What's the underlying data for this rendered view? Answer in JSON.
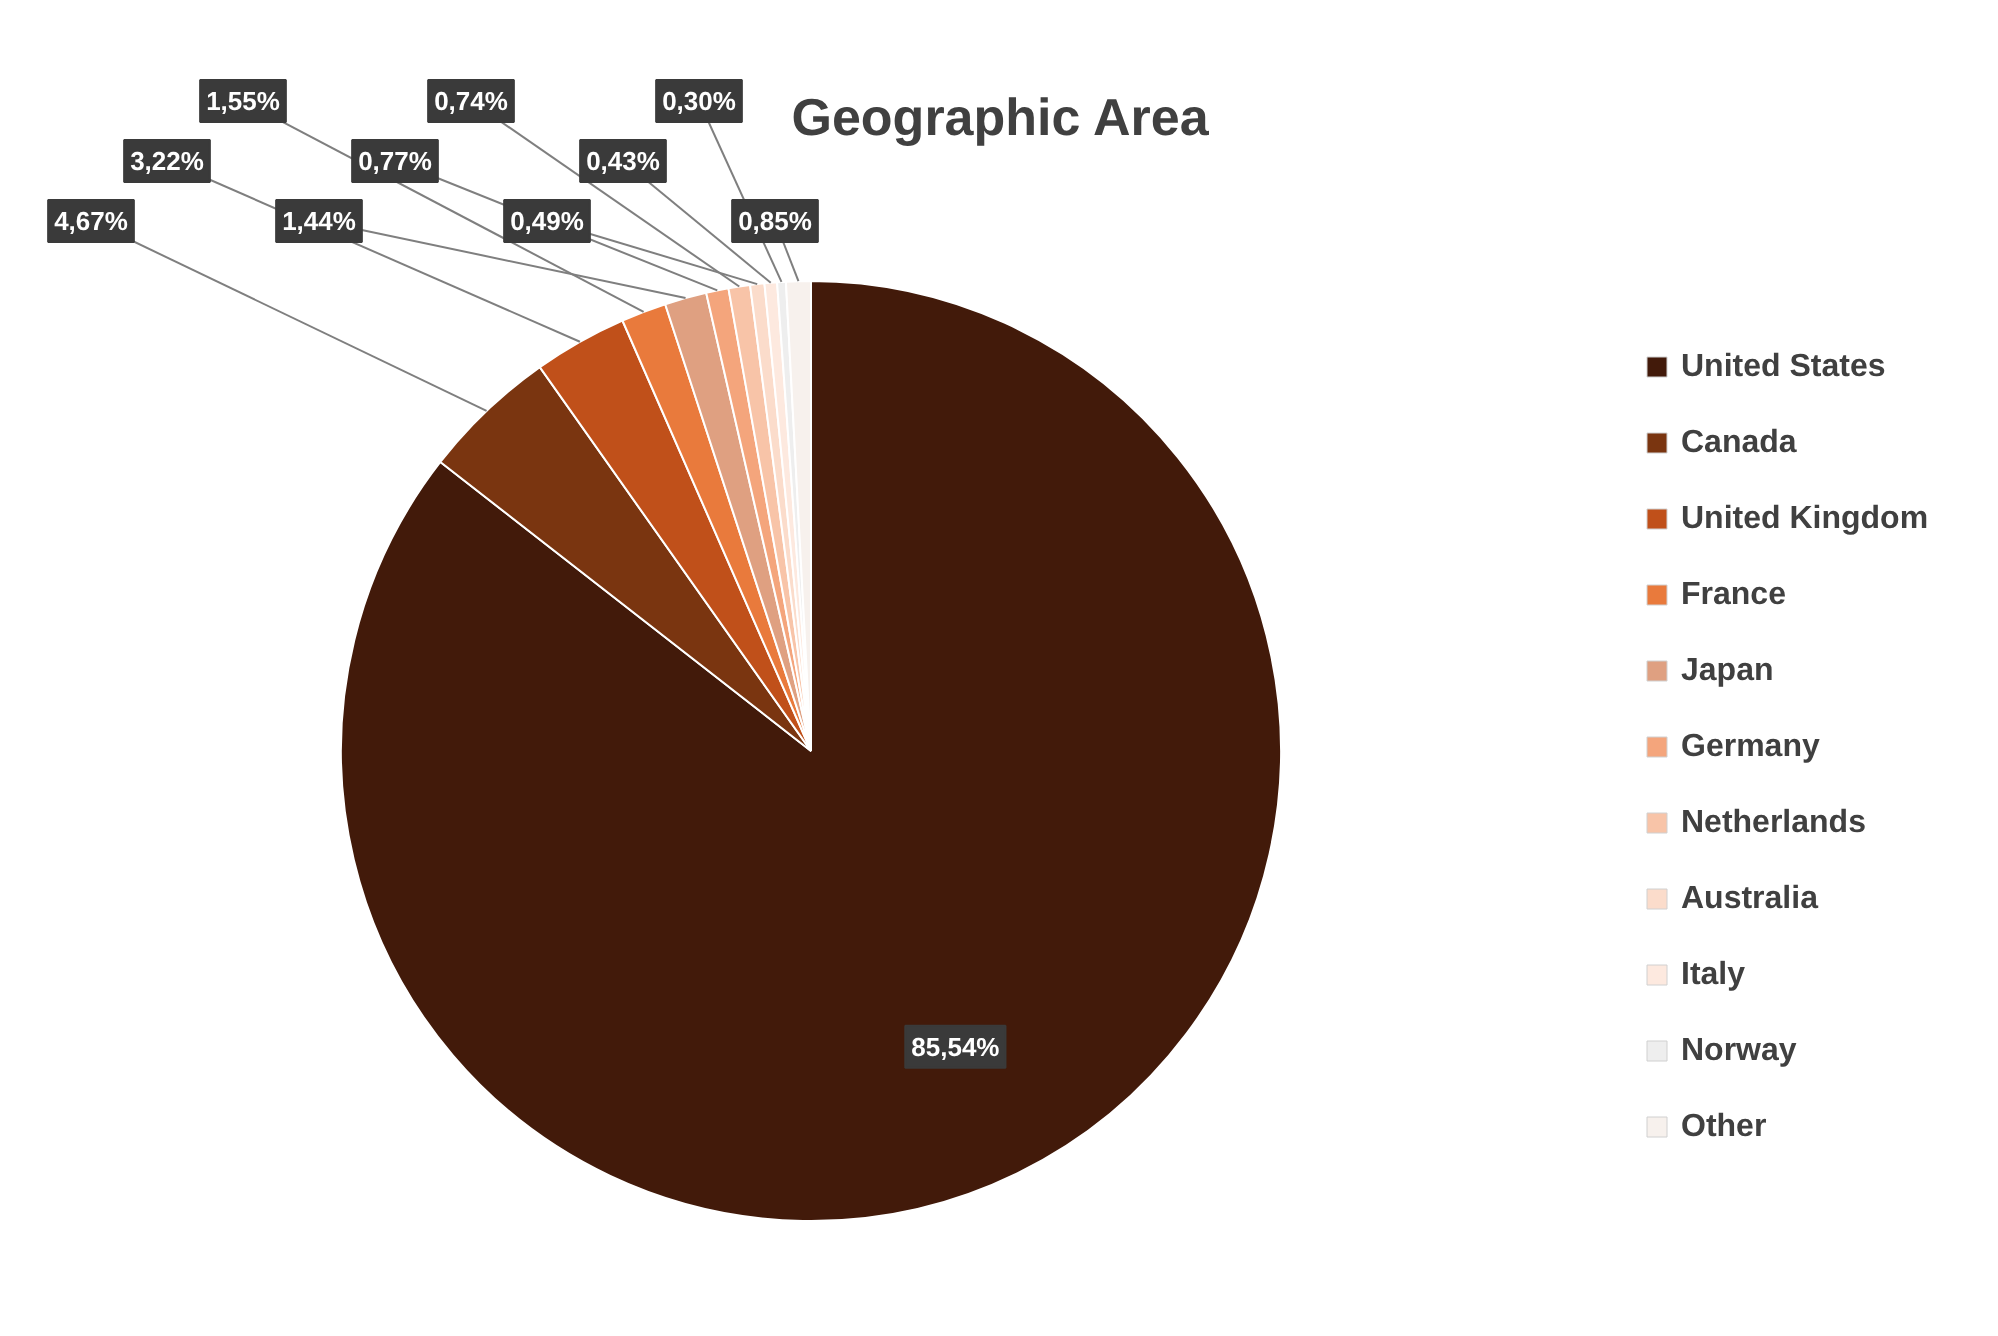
{
  "chart_data": {
    "type": "pie",
    "title": "Geographic Area",
    "categories": [
      "United States",
      "Canada",
      "United Kingdom",
      "France",
      "Japan",
      "Germany",
      "Netherlands",
      "Australia",
      "Italy",
      "Norway",
      "Other"
    ],
    "values": [
      85.54,
      4.67,
      3.22,
      1.55,
      1.44,
      0.77,
      0.74,
      0.49,
      0.43,
      0.3,
      0.85
    ],
    "colors": [
      "#421a0a",
      "#7a3510",
      "#c0501a",
      "#e97a3c",
      "#dfa081",
      "#f4a57c",
      "#f8c4a8",
      "#fbdccb",
      "#fde9df",
      "#eeeeee",
      "#f7f1ed"
    ],
    "value_labels": [
      "85,54%",
      "4,67%",
      "3,22%",
      "1,55%",
      "1,44%",
      "0,77%",
      "0,74%",
      "0,49%",
      "0,43%",
      "0,30%",
      "0,85%"
    ],
    "legend": "right"
  }
}
